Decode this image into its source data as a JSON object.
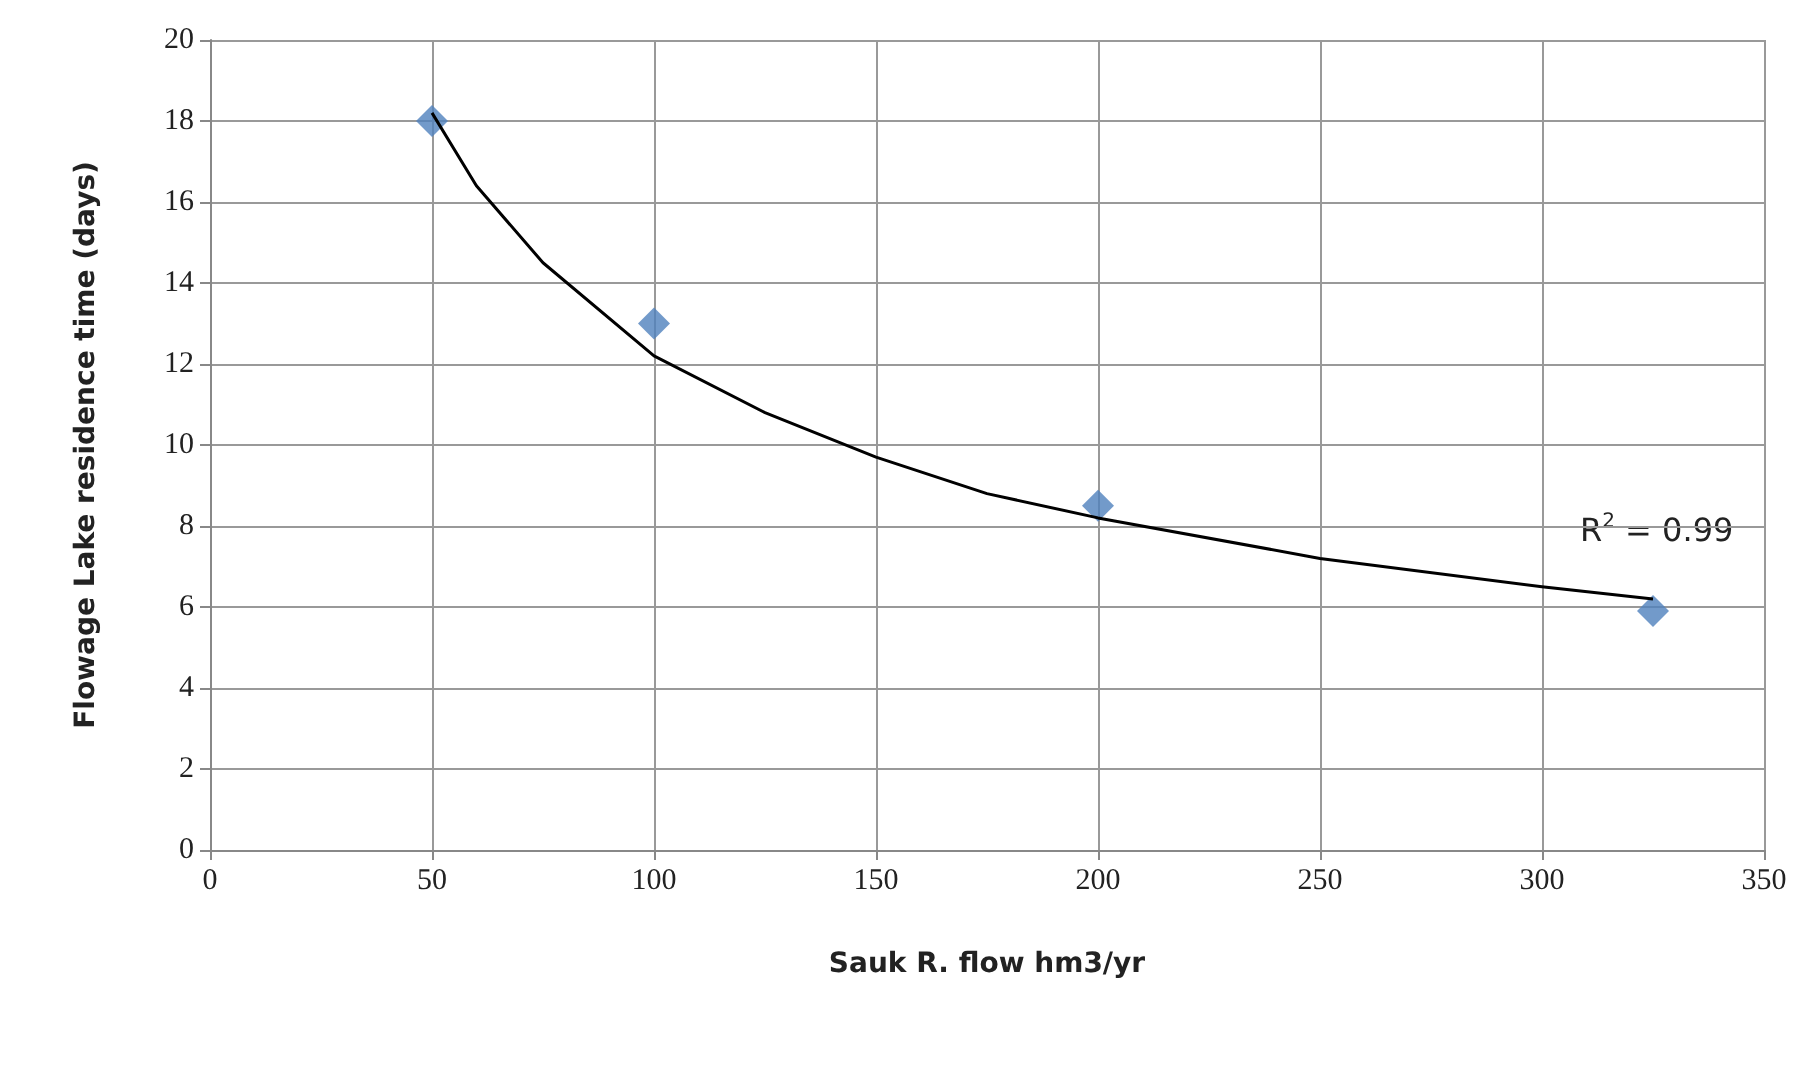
{
  "chart_data": {
    "type": "scatter",
    "xlabel": "Sauk R. flow hm3/yr",
    "ylabel": "Flowage Lake residence time (days)",
    "xlim": [
      0,
      350
    ],
    "xticks": [
      0,
      50,
      100,
      150,
      200,
      250,
      300,
      350
    ],
    "ylim": [
      0,
      20
    ],
    "yticks": [
      0,
      2,
      4,
      6,
      8,
      10,
      12,
      14,
      16,
      18,
      20
    ],
    "grid": true,
    "annotations": [
      "R$^{2}$ = 0.99"
    ],
    "series": [
      {
        "color": "#4f81bd",
        "marker": "diamond",
        "x": [
          50,
          100,
          200,
          325
        ],
        "values": [
          18,
          13,
          8.5,
          5.9
        ]
      },
      {
        "type": "line",
        "color": "#000000",
        "marker": "none",
        "line_style": "solid",
        "x": [
          50,
          60,
          75,
          100,
          125,
          150,
          175,
          200,
          250,
          300,
          325
        ],
        "values": [
          18.2,
          16.4,
          14.5,
          12.2,
          10.8,
          9.7,
          8.8,
          8.2,
          7.2,
          6.5,
          6.2
        ]
      }
    ]
  }
}
